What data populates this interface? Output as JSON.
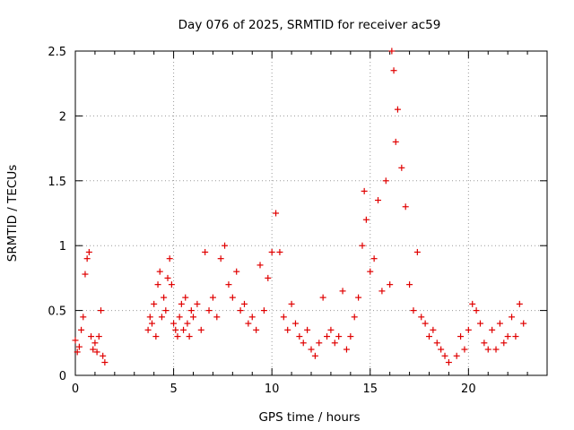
{
  "chart_data": {
    "type": "scatter",
    "title": "Day 076 of 2025, SRMTID for receiver ac59",
    "xlabel": "GPS time / hours",
    "ylabel": "SRMTID / TECUs",
    "xlim": [
      0,
      24
    ],
    "ylim": [
      0,
      2.5
    ],
    "xticks": [
      0,
      5,
      10,
      15,
      20
    ],
    "xtick_labels": [
      "0",
      "5",
      "10",
      "15",
      "20"
    ],
    "yticks": [
      0,
      0.5,
      1,
      1.5,
      2,
      2.5
    ],
    "ytick_labels": [
      "0",
      "0.5",
      "1",
      "1.5",
      "2",
      "2.5"
    ],
    "grid": true,
    "marker": "+",
    "color": "#e00000",
    "series": [
      {
        "name": "SRMTID",
        "x": [
          0.0,
          0.1,
          0.2,
          0.3,
          0.4,
          0.5,
          0.6,
          0.7,
          0.8,
          0.9,
          1.0,
          1.1,
          1.2,
          1.3,
          1.4,
          1.5,
          3.7,
          3.8,
          3.9,
          4.0,
          4.1,
          4.2,
          4.3,
          4.4,
          4.5,
          4.6,
          4.7,
          4.8,
          4.9,
          5.0,
          5.1,
          5.2,
          5.3,
          5.4,
          5.5,
          5.6,
          5.7,
          5.8,
          5.9,
          6.0,
          6.2,
          6.4,
          6.6,
          6.8,
          7.0,
          7.2,
          7.4,
          7.6,
          7.8,
          8.0,
          8.2,
          8.4,
          8.6,
          8.8,
          9.0,
          9.2,
          9.4,
          9.6,
          9.8,
          10.0,
          10.2,
          10.4,
          10.6,
          10.8,
          11.0,
          11.2,
          11.4,
          11.6,
          11.8,
          12.0,
          12.2,
          12.4,
          12.6,
          12.8,
          13.0,
          13.2,
          13.4,
          13.6,
          13.8,
          14.0,
          14.2,
          14.4,
          14.6,
          14.7,
          14.8,
          15.0,
          15.2,
          15.4,
          15.6,
          15.8,
          16.0,
          16.1,
          16.2,
          16.3,
          16.4,
          16.6,
          16.8,
          17.0,
          17.2,
          17.4,
          17.6,
          17.8,
          18.0,
          18.2,
          18.4,
          18.6,
          18.8,
          19.0,
          19.4,
          19.6,
          19.8,
          20.0,
          20.2,
          20.4,
          20.6,
          20.8,
          21.0,
          21.2,
          21.4,
          21.6,
          21.8,
          22.0,
          22.2,
          22.4,
          22.6,
          22.8
        ],
        "y": [
          0.27,
          0.18,
          0.22,
          0.35,
          0.45,
          0.78,
          0.9,
          0.95,
          0.3,
          0.2,
          0.25,
          0.18,
          0.3,
          0.5,
          0.15,
          0.1,
          0.35,
          0.45,
          0.4,
          0.55,
          0.3,
          0.7,
          0.8,
          0.45,
          0.6,
          0.5,
          0.75,
          0.9,
          0.7,
          0.4,
          0.35,
          0.3,
          0.45,
          0.55,
          0.35,
          0.6,
          0.4,
          0.3,
          0.5,
          0.45,
          0.55,
          0.35,
          0.95,
          0.5,
          0.6,
          0.45,
          0.9,
          1.0,
          0.7,
          0.6,
          0.8,
          0.5,
          0.55,
          0.4,
          0.45,
          0.35,
          0.85,
          0.5,
          0.75,
          0.95,
          1.25,
          0.95,
          0.45,
          0.35,
          0.55,
          0.4,
          0.3,
          0.25,
          0.35,
          0.2,
          0.15,
          0.25,
          0.6,
          0.3,
          0.35,
          0.25,
          0.3,
          0.65,
          0.2,
          0.3,
          0.45,
          0.6,
          1.0,
          1.42,
          1.2,
          0.8,
          0.9,
          1.35,
          0.65,
          1.5,
          0.7,
          2.5,
          2.35,
          1.8,
          2.05,
          1.6,
          1.3,
          0.7,
          0.5,
          0.95,
          0.45,
          0.4,
          0.3,
          0.35,
          0.25,
          0.2,
          0.15,
          0.1,
          0.15,
          0.3,
          0.2,
          0.35,
          0.55,
          0.5,
          0.4,
          0.25,
          0.2,
          0.35,
          0.2,
          0.4,
          0.25,
          0.3,
          0.45,
          0.3,
          0.55,
          0.4
        ]
      }
    ]
  }
}
